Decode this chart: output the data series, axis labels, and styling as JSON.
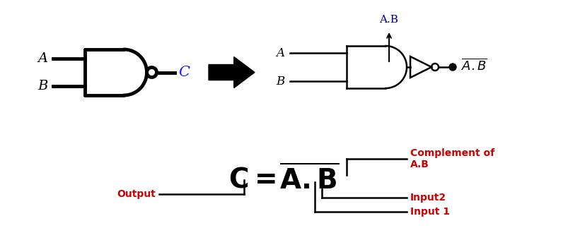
{
  "bg_color": "#ffffff",
  "line_color": "#000000",
  "red_color": "#cc0000",
  "blue_color": "#00008b",
  "label_A_left": "A",
  "label_B_left": "B",
  "label_C": "C",
  "label_A_right": "A",
  "label_B_right": "B",
  "label_AB_top": "A.B",
  "label_complement": "Complement of\nA.B",
  "label_output": "Output",
  "label_input2": "Input2",
  "label_input1": "Input 1",
  "figsize": [
    8.27,
    3.4
  ],
  "dpi": 100
}
